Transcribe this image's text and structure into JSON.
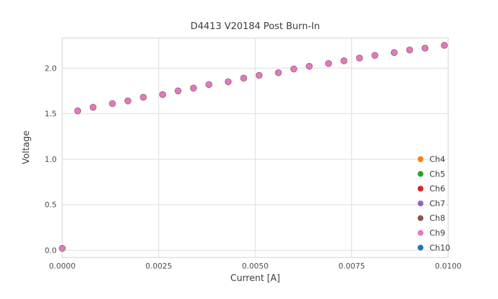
{
  "title": "D4413 V20184 Post Burn-In",
  "chart_data": {
    "type": "scatter",
    "title": "D4413 V20184 Post Burn-In",
    "xlabel": "Current [A]",
    "ylabel": "Voltage",
    "xlim": [
      0.0,
      0.01
    ],
    "ylim": [
      -0.08,
      2.33
    ],
    "grid": true,
    "legend_position": "lower right",
    "xtick_values": [
      0.0,
      0.0025,
      0.005,
      0.0075,
      0.01
    ],
    "xtick_labels": [
      "0.0000",
      "0.0025",
      "0.0050",
      "0.0075",
      "0.0100"
    ],
    "ytick_values": [
      0.0,
      0.5,
      1.0,
      1.5,
      2.0
    ],
    "ytick_labels": [
      "0.0",
      "0.5",
      "1.0",
      "1.5",
      "2.0"
    ],
    "x": [
      0.0,
      0.0004,
      0.0008,
      0.0013,
      0.0017,
      0.0021,
      0.0026,
      0.003,
      0.0034,
      0.0038,
      0.0043,
      0.0047,
      0.0051,
      0.0056,
      0.006,
      0.0064,
      0.0069,
      0.0073,
      0.0077,
      0.0081,
      0.0086,
      0.009,
      0.0094,
      0.0099
    ],
    "y": [
      0.02,
      1.53,
      1.57,
      1.61,
      1.64,
      1.68,
      1.71,
      1.75,
      1.78,
      1.82,
      1.85,
      1.89,
      1.92,
      1.95,
      1.99,
      2.02,
      2.05,
      2.08,
      2.11,
      2.14,
      2.17,
      2.2,
      2.22,
      2.25
    ],
    "series": [
      {
        "name": "Ch4",
        "color": "#ff7f0e"
      },
      {
        "name": "Ch5",
        "color": "#2ca02c"
      },
      {
        "name": "Ch6",
        "color": "#d62728"
      },
      {
        "name": "Ch7",
        "color": "#9467bd"
      },
      {
        "name": "Ch8",
        "color": "#8c564b"
      },
      {
        "name": "Ch9",
        "color": "#e377c2"
      },
      {
        "name": "Ch10",
        "color": "#1f77b4"
      }
    ],
    "draw_order": [
      "Ch4",
      "Ch5",
      "Ch6",
      "Ch8",
      "Ch10",
      "Ch7",
      "Ch9"
    ],
    "grid_color": "#dcdcdc",
    "spine_color": "#cfcfcf"
  }
}
